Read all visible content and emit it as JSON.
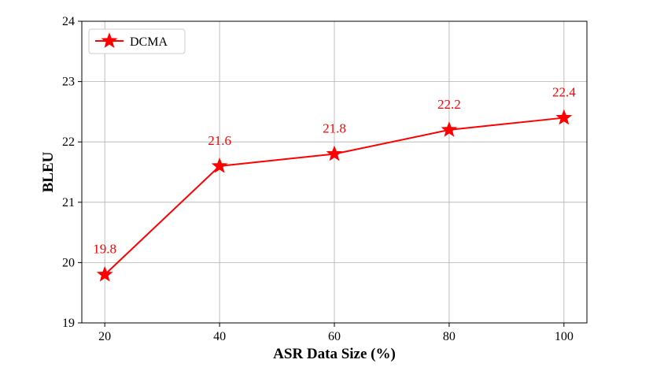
{
  "chart_data": {
    "type": "line",
    "x": [
      20,
      40,
      60,
      80,
      100
    ],
    "series": [
      {
        "name": "DCMA",
        "values": [
          19.8,
          21.6,
          21.8,
          22.2,
          22.4
        ],
        "color": "#ff0000",
        "marker": "star"
      }
    ],
    "data_labels": [
      "19.8",
      "21.6",
      "21.8",
      "22.2",
      "22.4"
    ],
    "xlabel": "ASR Data Size (%)",
    "ylabel": "BLEU",
    "xticks": [
      "20",
      "40",
      "60",
      "80",
      "100"
    ],
    "yticks": [
      "19",
      "20",
      "21",
      "22",
      "23",
      "24"
    ],
    "xlim": [
      16,
      104
    ],
    "ylim": [
      19,
      24
    ],
    "grid": true,
    "legend": {
      "placement": "top-left",
      "entries": [
        "DCMA"
      ]
    }
  }
}
